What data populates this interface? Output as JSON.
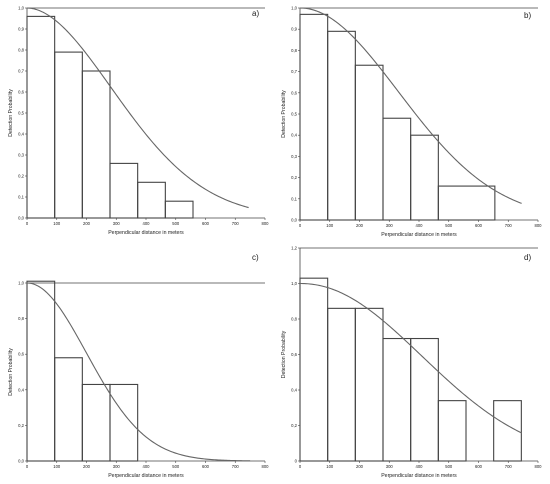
{
  "chart_data": [
    {
      "type": "bar",
      "panel_label": "a)",
      "xlabel": "Perpendicular distance in meters",
      "ylabel": "Detection Probability",
      "xlim": [
        0,
        800
      ],
      "ylim": [
        0,
        1.0
      ],
      "xticks": [
        0,
        100,
        200,
        300,
        400,
        500,
        600,
        700,
        800
      ],
      "yticks": [
        0,
        0.1,
        0.2,
        0.3,
        0.4,
        0.5,
        0.6,
        0.7,
        0.8,
        0.9,
        1.0
      ],
      "ytick_labels": [
        "0,0",
        "0,1",
        "0,2",
        "0,3",
        "0,4",
        "0,5",
        "0,6",
        "0,7",
        "0,8",
        "0,9",
        "1,0"
      ],
      "bin_edges": [
        0,
        93,
        186,
        279,
        372,
        465,
        558
      ],
      "values": [
        0.96,
        0.79,
        0.7,
        0.26,
        0.17,
        0.08
      ],
      "fit_curve": {
        "sigma": 290,
        "shape": 1.9,
        "x_end": 745
      },
      "grid": false
    },
    {
      "type": "bar",
      "panel_label": "b)",
      "xlabel": "Perpendicular distance in meters",
      "ylabel": "Detection Probability",
      "xlim": [
        0,
        800
      ],
      "ylim": [
        0,
        1.0
      ],
      "xticks": [
        0,
        100,
        200,
        300,
        400,
        500,
        600,
        700,
        800
      ],
      "yticks": [
        0,
        0.1,
        0.2,
        0.3,
        0.4,
        0.5,
        0.6,
        0.7,
        0.8,
        0.9,
        1.0
      ],
      "ytick_labels": [
        "0,0",
        "0,1",
        "0,2",
        "0,3",
        "0,4",
        "0,5",
        "0,6",
        "0,7",
        "0,8",
        "0,9",
        "1,0"
      ],
      "bin_edges": [
        0,
        93,
        186,
        279,
        372,
        465,
        655
      ],
      "values": [
        0.97,
        0.89,
        0.73,
        0.48,
        0.4,
        0.16
      ],
      "fit_curve": {
        "sigma": 330,
        "shape": 2.0,
        "x_end": 745
      },
      "grid": false
    },
    {
      "type": "bar",
      "panel_label": "c)",
      "xlabel": "Perpendicular distance in meters",
      "ylabel": "Detection Probability",
      "xlim": [
        0,
        800
      ],
      "ylim": [
        0,
        1.0
      ],
      "xticks": [
        0,
        100,
        200,
        300,
        400,
        500,
        600,
        700,
        800
      ],
      "yticks": [
        0,
        0.2,
        0.4,
        0.6,
        0.8,
        1.0
      ],
      "ytick_labels": [
        "0,0",
        "0,2",
        "0,4",
        "0,6",
        "0,8",
        "1,0"
      ],
      "bin_edges": [
        0,
        93,
        186,
        279,
        372
      ],
      "values": [
        1.01,
        0.58,
        0.43,
        0.43
      ],
      "fit_curve": {
        "sigma": 200,
        "shape": 2.0,
        "x_end": 750
      },
      "grid": false
    },
    {
      "type": "bar",
      "panel_label": "d)",
      "xlabel": "Perpendicular distance in meters",
      "ylabel": "Detection Probability",
      "xlim": [
        0,
        800
      ],
      "ylim": [
        0,
        1.2
      ],
      "xticks": [
        0,
        100,
        200,
        300,
        400,
        500,
        600,
        700,
        800
      ],
      "yticks": [
        0,
        0.2,
        0.4,
        0.6,
        0.8,
        1.0,
        1.2
      ],
      "ytick_labels": [
        "0",
        "0,2",
        "0,4",
        "0,6",
        "0,8",
        "1,0",
        "1,2"
      ],
      "bin_edges": [
        0,
        93,
        186,
        279,
        372,
        465,
        558,
        651,
        744
      ],
      "values": [
        1.03,
        0.86,
        0.86,
        0.69,
        0.69,
        0.34,
        0.0,
        0.34
      ],
      "fit_curve": {
        "sigma": 400,
        "shape": 2.1,
        "x_end": 745
      },
      "grid": false
    }
  ]
}
